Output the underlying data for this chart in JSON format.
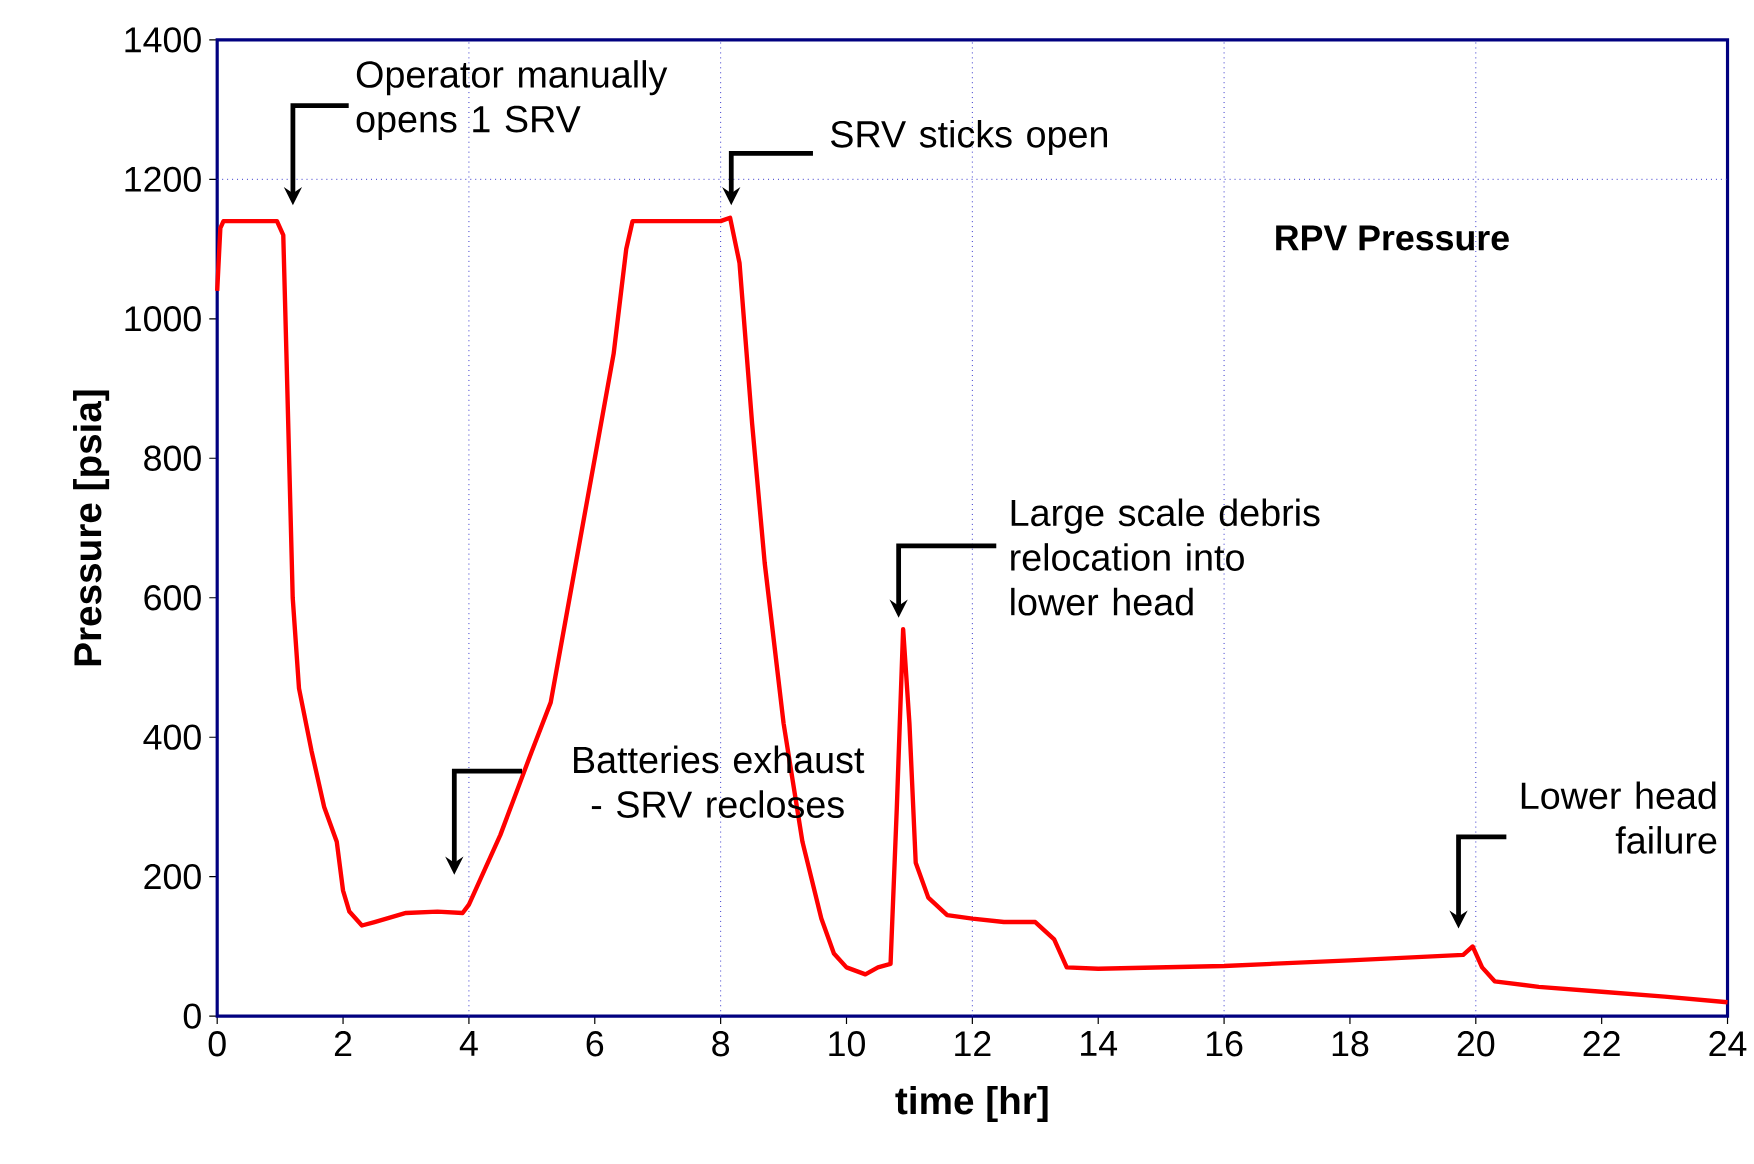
{
  "chart_data": {
    "type": "line",
    "xlabel": "time [hr]",
    "ylabel": "Pressure [psia]",
    "xlim": [
      0,
      24
    ],
    "xticks": [
      0,
      2,
      4,
      6,
      8,
      10,
      12,
      14,
      16,
      18,
      20,
      22,
      24
    ],
    "ylim": [
      0,
      1400
    ],
    "yticks": [
      0,
      200,
      400,
      600,
      800,
      1000,
      1200,
      1400
    ],
    "legend": false,
    "marker": "none",
    "line_style": "solid",
    "ref_lines": [
      {
        "axis": "y",
        "value": 1200,
        "color": "#3333cc",
        "line_style": "dotted"
      },
      {
        "axis": "x",
        "value": 4,
        "color": "#3333cc",
        "line_style": "dotted"
      },
      {
        "axis": "x",
        "value": 8,
        "color": "#3333cc",
        "line_style": "dotted"
      },
      {
        "axis": "x",
        "value": 12,
        "color": "#3333cc",
        "line_style": "dotted"
      },
      {
        "axis": "x",
        "value": 16,
        "color": "#3333cc",
        "line_style": "dotted"
      },
      {
        "axis": "x",
        "value": 20,
        "color": "#3333cc",
        "line_style": "dotted"
      }
    ],
    "annotations": [
      "Operator manually opens 1 SRV",
      "SRV sticks open",
      "Batteries exhaust - SRV recloses",
      "Large scale debris relocation into lower head",
      "Lower head failure"
    ],
    "series": [
      {
        "name": "RPV Pressure",
        "color": "#ff0000",
        "x": [
          0,
          0.05,
          0.1,
          0.5,
          0.95,
          1.05,
          1.1,
          1.2,
          1.3,
          1.5,
          1.7,
          1.9,
          2.0,
          2.1,
          2.3,
          2.5,
          3.0,
          3.5,
          3.9,
          4.0,
          4.5,
          5.0,
          5.3,
          5.6,
          6.0,
          6.3,
          6.5,
          6.6,
          7.0,
          8.0,
          8.15,
          8.3,
          8.5,
          8.7,
          9.0,
          9.3,
          9.6,
          9.8,
          10.0,
          10.3,
          10.5,
          10.7,
          10.8,
          10.9,
          11.0,
          11.1,
          11.3,
          11.6,
          12.0,
          12.5,
          13.0,
          13.3,
          13.5,
          14,
          16,
          18,
          19.8,
          19.95,
          20.1,
          20.3,
          21,
          22,
          23,
          24
        ],
        "values": [
          1040,
          1130,
          1140,
          1140,
          1140,
          1120,
          950,
          600,
          470,
          380,
          300,
          250,
          180,
          150,
          130,
          135,
          148,
          150,
          148,
          160,
          260,
          380,
          450,
          600,
          800,
          950,
          1100,
          1140,
          1140,
          1140,
          1145,
          1080,
          850,
          650,
          420,
          250,
          140,
          90,
          70,
          60,
          70,
          75,
          300,
          555,
          420,
          220,
          170,
          145,
          140,
          135,
          135,
          110,
          70,
          68,
          72,
          80,
          88,
          100,
          70,
          50,
          42,
          35,
          28,
          20
        ]
      }
    ]
  }
}
